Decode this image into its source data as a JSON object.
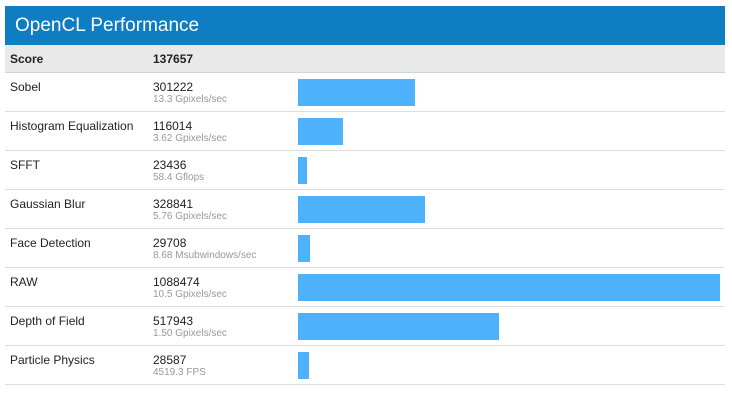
{
  "header": {
    "title": "OpenCL Performance"
  },
  "summary": {
    "label": "Score",
    "value": "137657"
  },
  "colors": {
    "header_bg": "#0f7dc2",
    "bar": "#4db1fb"
  },
  "max_score": 1088474,
  "tests": [
    {
      "name": "Sobel",
      "score": "301222",
      "rate": "13.3 Gpixels/sec",
      "value": 301222
    },
    {
      "name": "Histogram Equalization",
      "score": "116014",
      "rate": "3.62 Gpixels/sec",
      "value": 116014
    },
    {
      "name": "SFFT",
      "score": "23436",
      "rate": "58.4 Gflops",
      "value": 23436
    },
    {
      "name": "Gaussian Blur",
      "score": "328841",
      "rate": "5.76 Gpixels/sec",
      "value": 328841
    },
    {
      "name": "Face Detection",
      "score": "29708",
      "rate": "8.68 Msubwindows/sec",
      "value": 29708
    },
    {
      "name": "RAW",
      "score": "1088474",
      "rate": "10.5 Gpixels/sec",
      "value": 1088474
    },
    {
      "name": "Depth of Field",
      "score": "517943",
      "rate": "1.50 Gpixels/sec",
      "value": 517943
    },
    {
      "name": "Particle Physics",
      "score": "28587",
      "rate": "4519.3 FPS",
      "value": 28587
    }
  ]
}
